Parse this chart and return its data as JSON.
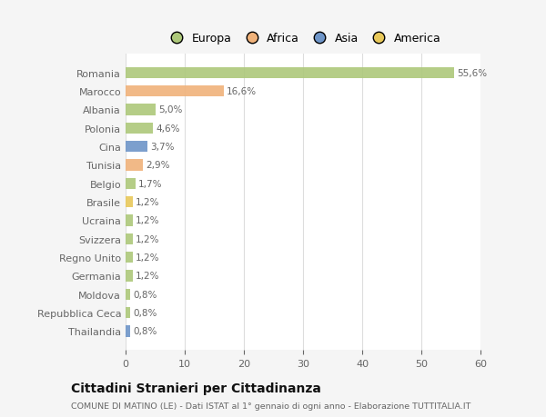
{
  "categories": [
    "Romania",
    "Marocco",
    "Albania",
    "Polonia",
    "Cina",
    "Tunisia",
    "Belgio",
    "Brasile",
    "Ucraina",
    "Svizzera",
    "Regno Unito",
    "Germania",
    "Moldova",
    "Repubblica Ceca",
    "Thailandia"
  ],
  "values": [
    55.6,
    16.6,
    5.0,
    4.6,
    3.7,
    2.9,
    1.7,
    1.2,
    1.2,
    1.2,
    1.2,
    1.2,
    0.8,
    0.8,
    0.8
  ],
  "labels": [
    "55,6%",
    "16,6%",
    "5,0%",
    "4,6%",
    "3,7%",
    "2,9%",
    "1,7%",
    "1,2%",
    "1,2%",
    "1,2%",
    "1,2%",
    "1,2%",
    "0,8%",
    "0,8%",
    "0,8%"
  ],
  "colors": [
    "#adc87a",
    "#f0b27a",
    "#adc87a",
    "#adc87a",
    "#6e95c8",
    "#f0b27a",
    "#adc87a",
    "#e8c85a",
    "#adc87a",
    "#adc87a",
    "#adc87a",
    "#adc87a",
    "#adc87a",
    "#adc87a",
    "#6e95c8"
  ],
  "legend_labels": [
    "Europa",
    "Africa",
    "Asia",
    "America"
  ],
  "legend_colors": [
    "#adc87a",
    "#f0b27a",
    "#6e95c8",
    "#e8c85a"
  ],
  "title": "Cittadini Stranieri per Cittadinanza",
  "subtitle": "COMUNE DI MATINO (LE) - Dati ISTAT al 1° gennaio di ogni anno - Elaborazione TUTTITALIA.IT",
  "xlim": [
    0,
    60
  ],
  "xticks": [
    0,
    10,
    20,
    30,
    40,
    50,
    60
  ],
  "bg_color": "#f5f5f5",
  "plot_bg_color": "#ffffff",
  "grid_color": "#dddddd",
  "text_color": "#666666",
  "title_color": "#111111"
}
